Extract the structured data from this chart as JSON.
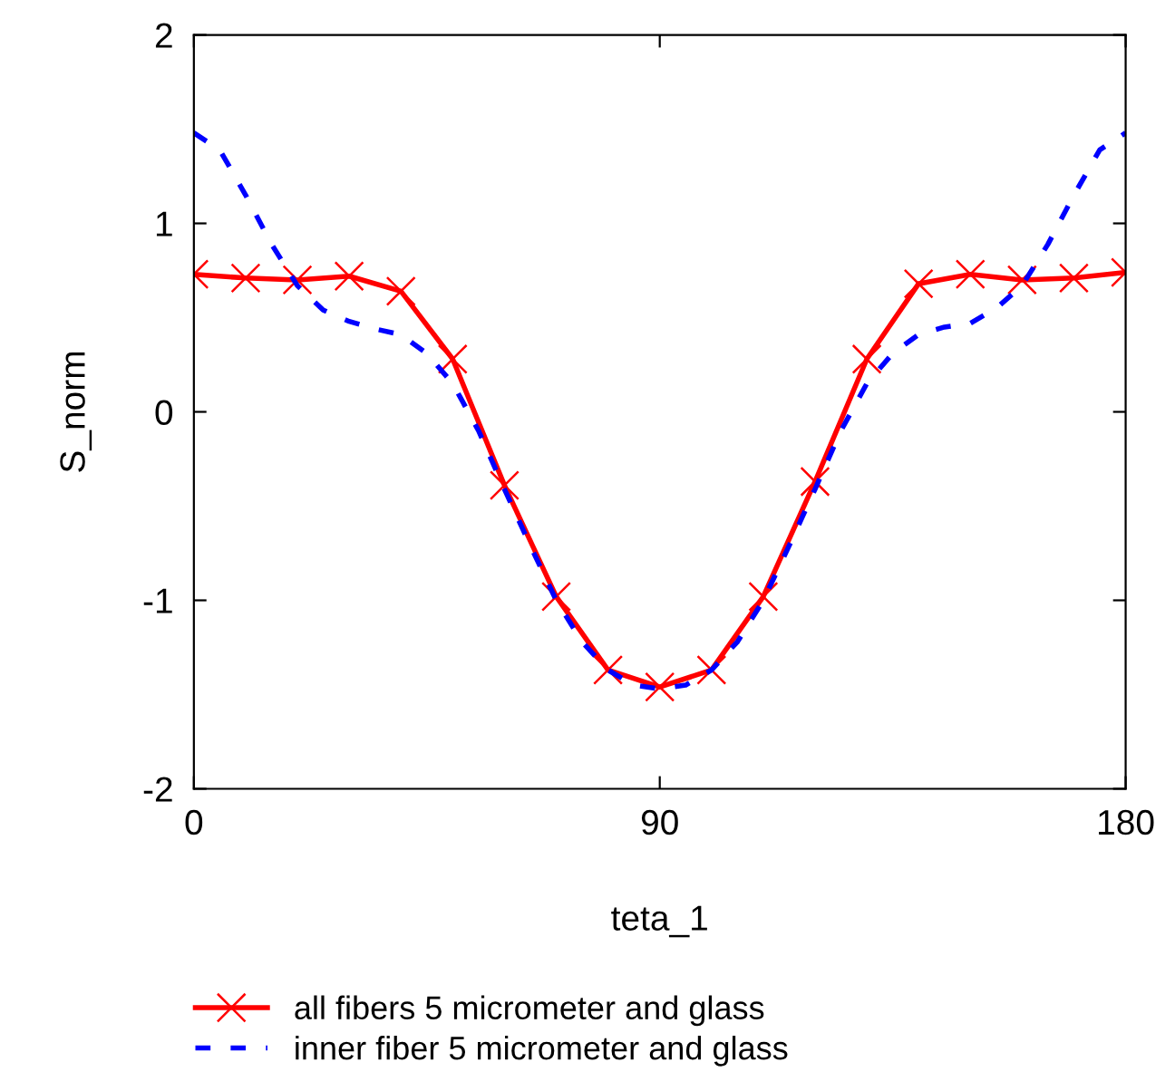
{
  "chart_data": {
    "type": "line",
    "xlabel": "teta_1",
    "ylabel": "S_norm",
    "xlim": [
      0,
      180
    ],
    "ylim": [
      -2,
      2
    ],
    "xticks": [
      0,
      90,
      180
    ],
    "yticks": [
      -2,
      -1,
      0,
      1,
      2
    ],
    "grid": false,
    "legend": "bottom",
    "series": [
      {
        "name": "all fibers 5 micrometer and glass",
        "color": "#ff0000",
        "marker": "cross",
        "line_style": "solid",
        "x": [
          0,
          10,
          20,
          30,
          40,
          50,
          60,
          70,
          80,
          90,
          100,
          110,
          120,
          130,
          140,
          150,
          160,
          170,
          180
        ],
        "values": [
          0.73,
          0.71,
          0.7,
          0.72,
          0.64,
          0.28,
          -0.39,
          -0.98,
          -1.37,
          -1.46,
          -1.37,
          -0.98,
          -0.37,
          0.28,
          0.68,
          0.73,
          0.7,
          0.71,
          0.74
        ]
      },
      {
        "name": "inner fiber 5 micrometer and glass",
        "color": "#0000ff",
        "marker": "none",
        "line_style": "dashed",
        "x": [
          0,
          5,
          10,
          15,
          20,
          25,
          30,
          35,
          40,
          45,
          50,
          55,
          60,
          65,
          70,
          75,
          80,
          85,
          90,
          95,
          100,
          105,
          110,
          115,
          120,
          125,
          130,
          135,
          140,
          145,
          150,
          155,
          160,
          165,
          170,
          175,
          180
        ],
        "values": [
          1.48,
          1.39,
          1.15,
          0.89,
          0.67,
          0.54,
          0.48,
          0.44,
          0.41,
          0.31,
          0.15,
          -0.1,
          -0.41,
          -0.71,
          -1.0,
          -1.22,
          -1.37,
          -1.45,
          -1.47,
          -1.45,
          -1.37,
          -1.22,
          -1.0,
          -0.71,
          -0.41,
          -0.1,
          0.15,
          0.31,
          0.41,
          0.45,
          0.47,
          0.55,
          0.67,
          0.89,
          1.15,
          1.39,
          1.48
        ]
      }
    ]
  }
}
